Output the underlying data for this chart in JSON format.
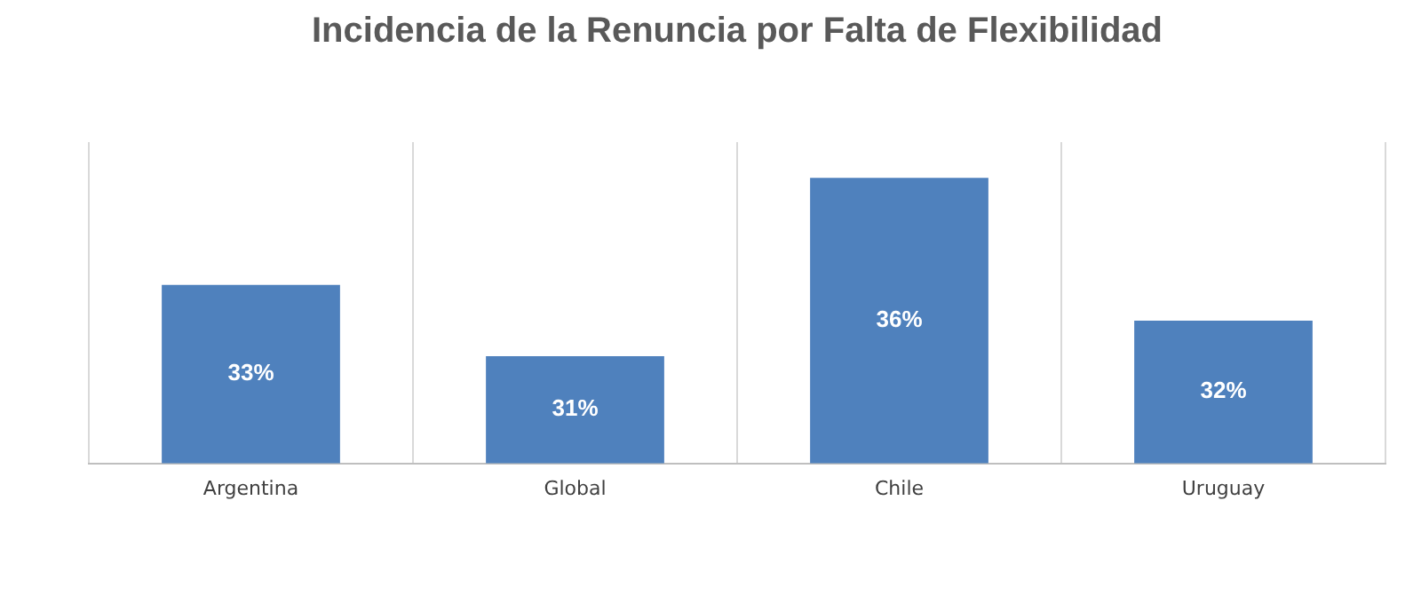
{
  "chart_data": {
    "type": "bar",
    "title": "Incidencia de la Renuncia por Falta de Flexibilidad",
    "categories": [
      "Argentina",
      "Global",
      "Chile",
      "Uruguay"
    ],
    "values": [
      33,
      31,
      36,
      32
    ],
    "value_labels": [
      "33%",
      "31%",
      "36%",
      "32%"
    ],
    "color": "#4f81bd",
    "ylim": [
      28,
      37
    ],
    "grid": "x",
    "tick_labels": "x"
  }
}
